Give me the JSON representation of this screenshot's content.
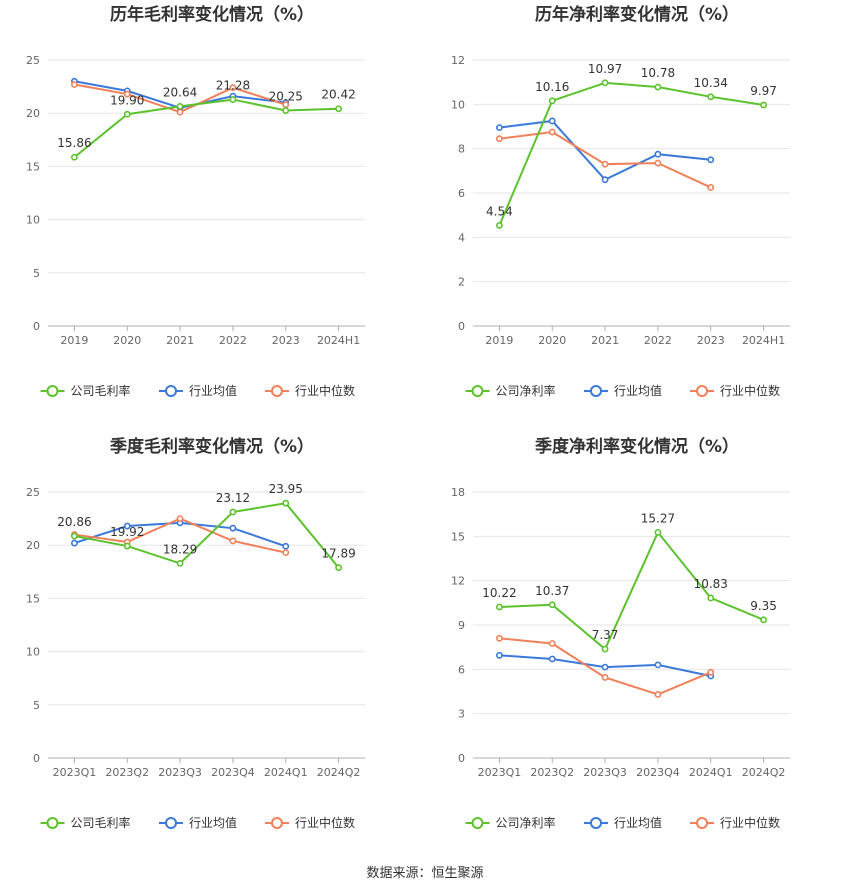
{
  "footer": "数据来源：恒生聚源",
  "chart_data": [
    {
      "type": "line",
      "title": "历年毛利率变化情况（%）",
      "categories": [
        "2019",
        "2020",
        "2021",
        "2022",
        "2023",
        "2024H1"
      ],
      "ylim": [
        0,
        25
      ],
      "yticks": [
        0,
        5,
        10,
        15,
        20,
        25
      ],
      "grid": true,
      "legend_position": "bottom",
      "series": [
        {
          "name": "公司毛利率",
          "color": "#5bc22b",
          "labels": true,
          "values": [
            15.86,
            19.9,
            20.64,
            21.28,
            20.25,
            20.42
          ]
        },
        {
          "name": "行业均值",
          "color": "#3a78d9",
          "labels": false,
          "values": [
            23.0,
            22.1,
            20.5,
            21.6,
            21.0,
            null
          ]
        },
        {
          "name": "行业中位数",
          "color": "#f0805a",
          "labels": false,
          "values": [
            22.7,
            21.8,
            20.1,
            22.4,
            20.8,
            null
          ]
        }
      ]
    },
    {
      "type": "line",
      "title": "历年净利率变化情况（%）",
      "categories": [
        "2019",
        "2020",
        "2021",
        "2022",
        "2023",
        "2024H1"
      ],
      "ylim": [
        0,
        12
      ],
      "yticks": [
        0,
        2,
        4,
        6,
        8,
        10,
        12
      ],
      "grid": true,
      "legend_position": "bottom",
      "series": [
        {
          "name": "公司净利率",
          "color": "#5bc22b",
          "labels": true,
          "values": [
            4.54,
            10.16,
            10.97,
            10.78,
            10.34,
            9.97
          ]
        },
        {
          "name": "行业均值",
          "color": "#3a78d9",
          "labels": false,
          "values": [
            8.95,
            9.25,
            6.6,
            7.75,
            7.5,
            null
          ]
        },
        {
          "name": "行业中位数",
          "color": "#f0805a",
          "labels": false,
          "values": [
            8.45,
            8.75,
            7.3,
            7.35,
            6.25,
            null
          ]
        }
      ]
    },
    {
      "type": "line",
      "title": "季度毛利率变化情况（%）",
      "categories": [
        "2023Q1",
        "2023Q2",
        "2023Q3",
        "2023Q4",
        "2024Q1",
        "2024Q2"
      ],
      "ylim": [
        0,
        25
      ],
      "yticks": [
        0,
        5,
        10,
        15,
        20,
        25
      ],
      "grid": true,
      "legend_position": "bottom",
      "series": [
        {
          "name": "公司毛利率",
          "color": "#5bc22b",
          "labels": true,
          "values": [
            20.86,
            19.92,
            18.29,
            23.12,
            23.95,
            17.89
          ]
        },
        {
          "name": "行业均值",
          "color": "#3a78d9",
          "labels": false,
          "values": [
            20.2,
            21.8,
            22.1,
            21.6,
            19.9,
            null
          ]
        },
        {
          "name": "行业中位数",
          "color": "#f0805a",
          "labels": false,
          "values": [
            21.0,
            20.3,
            22.5,
            20.4,
            19.3,
            null
          ]
        }
      ]
    },
    {
      "type": "line",
      "title": "季度净利率变化情况（%）",
      "categories": [
        "2023Q1",
        "2023Q2",
        "2023Q3",
        "2023Q4",
        "2024Q1",
        "2024Q2"
      ],
      "ylim": [
        0,
        18
      ],
      "yticks": [
        0,
        3,
        6,
        9,
        12,
        15,
        18
      ],
      "grid": true,
      "legend_position": "bottom",
      "series": [
        {
          "name": "公司净利率",
          "color": "#5bc22b",
          "labels": true,
          "values": [
            10.22,
            10.37,
            7.37,
            15.27,
            10.83,
            9.35
          ]
        },
        {
          "name": "行业均值",
          "color": "#3a78d9",
          "labels": false,
          "values": [
            6.95,
            6.7,
            6.15,
            6.3,
            5.55,
            null
          ]
        },
        {
          "name": "行业中位数",
          "color": "#f0805a",
          "labels": false,
          "values": [
            8.1,
            7.75,
            5.45,
            4.3,
            5.8,
            null
          ]
        }
      ]
    }
  ]
}
